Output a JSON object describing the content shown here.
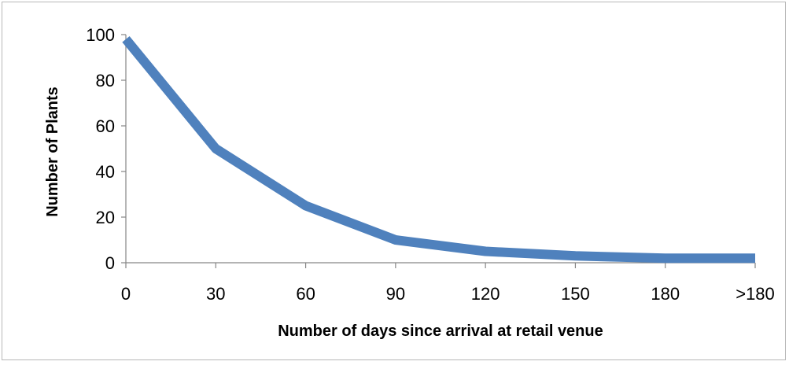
{
  "chart_data": {
    "type": "line",
    "categories": [
      "0",
      "30",
      "60",
      "90",
      "120",
      "150",
      "180",
      ">180"
    ],
    "series": [
      {
        "values": [
          98,
          50,
          25,
          10,
          5,
          3,
          2,
          2
        ]
      }
    ],
    "title": "",
    "xlabel": "Number of days since arrival at retail venue",
    "ylabel": "Number of Plants",
    "ylim": [
      0,
      100
    ],
    "yticks": [
      "0",
      "20",
      "40",
      "60",
      "80",
      "100"
    ],
    "grid": false,
    "legend": "none",
    "line_color": "#4f81bd"
  }
}
